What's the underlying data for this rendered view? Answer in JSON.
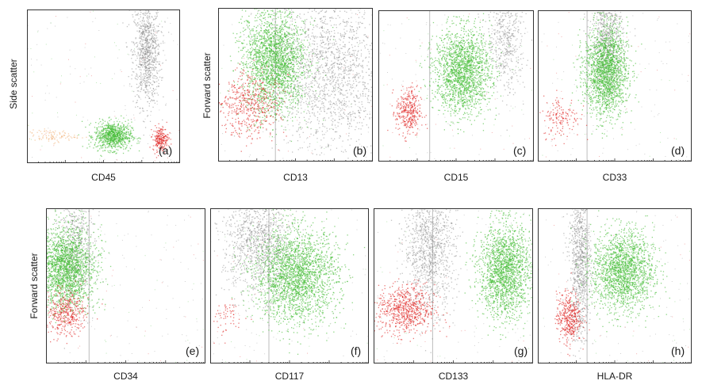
{
  "y_labels": {
    "side_scatter": "Side scatter",
    "forward_scatter_top": "Forward scatter",
    "forward_scatter_bottom": "Forward scatter"
  },
  "colors": {
    "green": "#3dba2e",
    "red": "#e0201e",
    "gray": "#7a7a7a",
    "orange": "#f2b27a",
    "gate_line": "#bdbdbd",
    "frame": "#333333"
  },
  "chart_data": [
    {
      "type": "scatter",
      "letter": "(a)",
      "xlabel": "CD45",
      "ylabel": "Side scatter",
      "gate": null,
      "populations": [
        {
          "color": "gray",
          "cx": 0.78,
          "cy": 0.72,
          "sx": 0.045,
          "sy": 0.17,
          "n": 900
        },
        {
          "color": "green",
          "cx": 0.56,
          "cy": 0.18,
          "sx": 0.06,
          "sy": 0.045,
          "n": 800
        },
        {
          "color": "red",
          "cx": 0.87,
          "cy": 0.16,
          "sx": 0.025,
          "sy": 0.04,
          "n": 220
        },
        {
          "color": "orange",
          "cx": 0.16,
          "cy": 0.18,
          "sx": 0.08,
          "sy": 0.02,
          "n": 100
        }
      ]
    },
    {
      "type": "scatter",
      "letter": "(b)",
      "xlabel": "CD13",
      "ylabel": "Forward scatter",
      "gate": 0.37,
      "populations": [
        {
          "color": "gray",
          "cx": 0.72,
          "cy": 0.6,
          "sx": 0.2,
          "sy": 0.25,
          "n": 1800
        },
        {
          "color": "green",
          "cx": 0.36,
          "cy": 0.66,
          "sx": 0.1,
          "sy": 0.17,
          "n": 2200
        },
        {
          "color": "red",
          "cx": 0.2,
          "cy": 0.37,
          "sx": 0.1,
          "sy": 0.1,
          "n": 500
        }
      ]
    },
    {
      "type": "scatter",
      "letter": "(c)",
      "xlabel": "CD15",
      "ylabel": "",
      "gate": 0.33,
      "populations": [
        {
          "color": "gray",
          "cx": 0.82,
          "cy": 0.82,
          "sx": 0.06,
          "sy": 0.18,
          "n": 500
        },
        {
          "color": "green",
          "cx": 0.54,
          "cy": 0.6,
          "sx": 0.09,
          "sy": 0.14,
          "n": 1800
        },
        {
          "color": "red",
          "cx": 0.19,
          "cy": 0.33,
          "sx": 0.04,
          "sy": 0.08,
          "n": 350
        }
      ]
    },
    {
      "type": "scatter",
      "letter": "(d)",
      "xlabel": "CD33",
      "ylabel": "",
      "gate": 0.32,
      "populations": [
        {
          "color": "gray",
          "cx": 0.45,
          "cy": 0.82,
          "sx": 0.05,
          "sy": 0.18,
          "n": 700
        },
        {
          "color": "green",
          "cx": 0.44,
          "cy": 0.6,
          "sx": 0.07,
          "sy": 0.15,
          "n": 1800
        },
        {
          "color": "red",
          "cx": 0.15,
          "cy": 0.3,
          "sx": 0.06,
          "sy": 0.07,
          "n": 150
        }
      ]
    },
    {
      "type": "scatter",
      "letter": "(e)",
      "xlabel": "CD34",
      "ylabel": "Forward scatter",
      "gate": 0.27,
      "populations": [
        {
          "color": "gray",
          "cx": 0.18,
          "cy": 0.78,
          "sx": 0.06,
          "sy": 0.2,
          "n": 600
        },
        {
          "color": "green",
          "cx": 0.12,
          "cy": 0.62,
          "sx": 0.09,
          "sy": 0.13,
          "n": 2000
        },
        {
          "color": "red",
          "cx": 0.12,
          "cy": 0.33,
          "sx": 0.06,
          "sy": 0.07,
          "n": 400
        }
      ]
    },
    {
      "type": "scatter",
      "letter": "(f)",
      "xlabel": "CD117",
      "ylabel": "",
      "gate": 0.37,
      "populations": [
        {
          "color": "gray",
          "cx": 0.3,
          "cy": 0.78,
          "sx": 0.11,
          "sy": 0.17,
          "n": 1100
        },
        {
          "color": "green",
          "cx": 0.54,
          "cy": 0.57,
          "sx": 0.13,
          "sy": 0.15,
          "n": 2300
        },
        {
          "color": "red",
          "cx": 0.1,
          "cy": 0.3,
          "sx": 0.06,
          "sy": 0.06,
          "n": 60
        }
      ]
    },
    {
      "type": "scatter",
      "letter": "(g)",
      "xlabel": "CD133",
      "ylabel": "",
      "gate": 0.37,
      "populations": [
        {
          "color": "gray",
          "cx": 0.35,
          "cy": 0.75,
          "sx": 0.08,
          "sy": 0.2,
          "n": 1100
        },
        {
          "color": "green",
          "cx": 0.82,
          "cy": 0.6,
          "sx": 0.08,
          "sy": 0.15,
          "n": 1800
        },
        {
          "color": "red",
          "cx": 0.2,
          "cy": 0.35,
          "sx": 0.09,
          "sy": 0.08,
          "n": 700
        }
      ]
    },
    {
      "type": "scatter",
      "letter": "(h)",
      "xlabel": "HLA-DR",
      "ylabel": "",
      "gate": 0.32,
      "populations": [
        {
          "color": "gray",
          "cx": 0.27,
          "cy": 0.65,
          "sx": 0.035,
          "sy": 0.25,
          "n": 900
        },
        {
          "color": "green",
          "cx": 0.55,
          "cy": 0.6,
          "sx": 0.1,
          "sy": 0.13,
          "n": 1800
        },
        {
          "color": "red",
          "cx": 0.2,
          "cy": 0.3,
          "sx": 0.04,
          "sy": 0.08,
          "n": 400
        }
      ]
    }
  ]
}
